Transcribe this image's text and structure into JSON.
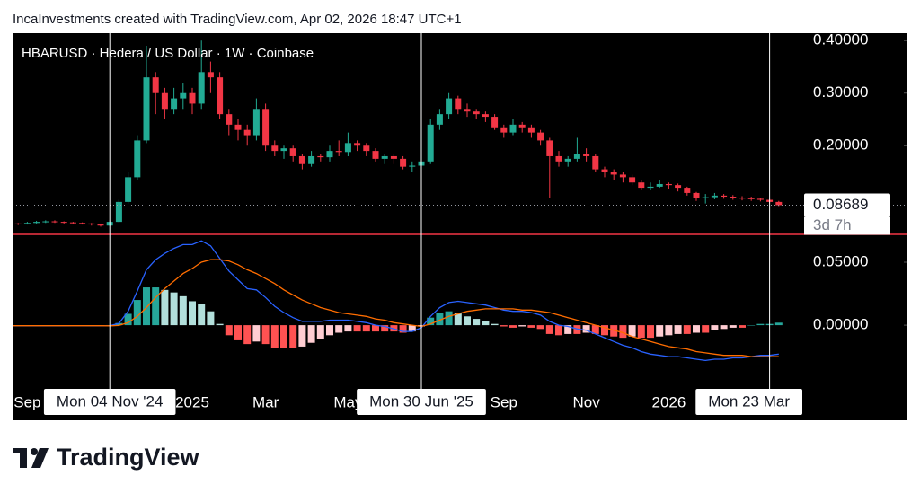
{
  "header": "IncaInvestments created with TradingView.com, Apr 02, 2026 18:47 UTC+1",
  "logo": "TradingView",
  "chart_data": [
    {
      "type": "candlestick",
      "title": "HBARUSD · Hedera / US Dollar · 1W · Coinbase",
      "countdown": "3d 7h",
      "up_color": "#22ab94",
      "down_color": "#f23645",
      "ylim": [
        0.033,
        0.414
      ],
      "yticks": [
        {
          "value": 0.4,
          "label": "0.40000"
        },
        {
          "value": 0.3,
          "label": "0.30000"
        },
        {
          "value": 0.2,
          "label": "0.20000"
        }
      ],
      "open": [
        0.05,
        0.052,
        0.051,
        0.053,
        0.055,
        0.056,
        0.055,
        0.054,
        0.053,
        0.052,
        0.05,
        0.048,
        0.055,
        0.093,
        0.14,
        0.21,
        0.33,
        0.3,
        0.27,
        0.29,
        0.3,
        0.28,
        0.34,
        0.33,
        0.26,
        0.24,
        0.23,
        0.22,
        0.27,
        0.2,
        0.19,
        0.195,
        0.18,
        0.165,
        0.18,
        0.178,
        0.19,
        0.188,
        0.205,
        0.2,
        0.19,
        0.175,
        0.18,
        0.175,
        0.16,
        0.162,
        0.17,
        0.24,
        0.26,
        0.29,
        0.27,
        0.265,
        0.26,
        0.255,
        0.235,
        0.225,
        0.24,
        0.235,
        0.225,
        0.21,
        0.18,
        0.17,
        0.175,
        0.185,
        0.18,
        0.155,
        0.15,
        0.145,
        0.14,
        0.13,
        0.12,
        0.122,
        0.127,
        0.125,
        0.12,
        0.11,
        0.1,
        0.102,
        0.105,
        0.103,
        0.101,
        0.1,
        0.099,
        0.097,
        0.093
      ],
      "high": [
        0.054,
        0.053,
        0.055,
        0.057,
        0.058,
        0.058,
        0.056,
        0.055,
        0.054,
        0.053,
        0.051,
        0.058,
        0.097,
        0.15,
        0.22,
        0.39,
        0.34,
        0.31,
        0.31,
        0.32,
        0.31,
        0.4,
        0.36,
        0.34,
        0.27,
        0.25,
        0.24,
        0.29,
        0.28,
        0.21,
        0.2,
        0.2,
        0.185,
        0.19,
        0.185,
        0.2,
        0.21,
        0.225,
        0.21,
        0.205,
        0.195,
        0.185,
        0.185,
        0.18,
        0.17,
        0.18,
        0.25,
        0.27,
        0.3,
        0.295,
        0.28,
        0.27,
        0.265,
        0.26,
        0.24,
        0.25,
        0.245,
        0.24,
        0.23,
        0.215,
        0.19,
        0.18,
        0.215,
        0.195,
        0.185,
        0.16,
        0.155,
        0.15,
        0.145,
        0.135,
        0.13,
        0.135,
        0.13,
        0.128,
        0.122,
        0.112,
        0.108,
        0.11,
        0.108,
        0.106,
        0.104,
        0.103,
        0.101,
        0.099,
        0.095
      ],
      "low": [
        0.049,
        0.049,
        0.05,
        0.052,
        0.053,
        0.053,
        0.052,
        0.051,
        0.05,
        0.048,
        0.046,
        0.047,
        0.054,
        0.09,
        0.135,
        0.205,
        0.26,
        0.25,
        0.26,
        0.27,
        0.26,
        0.27,
        0.3,
        0.25,
        0.22,
        0.21,
        0.2,
        0.21,
        0.19,
        0.18,
        0.175,
        0.17,
        0.155,
        0.16,
        0.17,
        0.17,
        0.18,
        0.18,
        0.19,
        0.18,
        0.17,
        0.165,
        0.165,
        0.155,
        0.15,
        0.155,
        0.165,
        0.23,
        0.25,
        0.26,
        0.255,
        0.25,
        0.245,
        0.23,
        0.215,
        0.22,
        0.225,
        0.215,
        0.2,
        0.1,
        0.16,
        0.16,
        0.17,
        0.17,
        0.15,
        0.14,
        0.135,
        0.13,
        0.125,
        0.115,
        0.115,
        0.12,
        0.118,
        0.113,
        0.105,
        0.095,
        0.09,
        0.098,
        0.099,
        0.097,
        0.096,
        0.095,
        0.094,
        0.09,
        0.085
      ],
      "close": [
        0.052,
        0.051,
        0.053,
        0.055,
        0.056,
        0.055,
        0.054,
        0.053,
        0.052,
        0.05,
        0.048,
        0.055,
        0.093,
        0.14,
        0.21,
        0.33,
        0.3,
        0.27,
        0.29,
        0.3,
        0.28,
        0.34,
        0.33,
        0.26,
        0.24,
        0.23,
        0.22,
        0.27,
        0.2,
        0.19,
        0.195,
        0.18,
        0.165,
        0.18,
        0.178,
        0.19,
        0.188,
        0.205,
        0.2,
        0.19,
        0.175,
        0.18,
        0.175,
        0.16,
        0.162,
        0.17,
        0.24,
        0.26,
        0.29,
        0.27,
        0.265,
        0.26,
        0.255,
        0.235,
        0.225,
        0.24,
        0.235,
        0.225,
        0.21,
        0.18,
        0.17,
        0.175,
        0.185,
        0.18,
        0.155,
        0.15,
        0.145,
        0.14,
        0.13,
        0.12,
        0.122,
        0.127,
        0.125,
        0.12,
        0.11,
        0.1,
        0.102,
        0.105,
        0.103,
        0.101,
        0.1,
        0.099,
        0.097,
        0.093,
        0.08689
      ]
    },
    {
      "type": "macd",
      "ylim": [
        -0.052,
        0.0714
      ],
      "yticks": [
        {
          "value": 0.05,
          "label": "0.05000"
        },
        {
          "value": 0,
          "label": "0.00000"
        }
      ],
      "series": [
        {
          "color": "#2962ff",
          "values": [
            -0.0005,
            -0.0006,
            -0.0006,
            -0.0006,
            -0.0005,
            -0.0005,
            -0.0005,
            -0.0004,
            -0.0004,
            -0.0005,
            -0.0006,
            -0.0004,
            0.0015,
            0.011,
            0.027,
            0.044,
            0.052,
            0.057,
            0.061,
            0.064,
            0.064,
            0.067,
            0.063,
            0.053,
            0.043,
            0.036,
            0.029,
            0.028,
            0.022,
            0.015,
            0.01,
            0.006,
            0.003,
            0.003,
            0.003,
            0.004,
            0.004,
            0.004,
            0.003,
            0.002,
            0,
            -0.001,
            -0.003,
            -0.005,
            -0.005,
            -0.002,
            0.007,
            0.014,
            0.018,
            0.019,
            0.018,
            0.017,
            0.016,
            0.014,
            0.012,
            0.011,
            0.011,
            0.01,
            0.008,
            0.003,
            0,
            -0.001,
            -0.003,
            -0.004,
            -0.007,
            -0.01,
            -0.013,
            -0.016,
            -0.018,
            -0.021,
            -0.023,
            -0.024,
            -0.025,
            -0.025,
            -0.026,
            -0.027,
            -0.028,
            -0.027,
            -0.027,
            -0.026,
            -0.026,
            -0.025,
            -0.024,
            -0.024,
            -0.023
          ]
        },
        {
          "color": "#ff6d00",
          "values": [
            -0.0004,
            -0.0004,
            -0.0004,
            -0.0004,
            -0.0004,
            -0.0004,
            -0.0004,
            -0.0004,
            -0.0004,
            -0.0004,
            -0.0004,
            -0.0005,
            -0.0002,
            0.002,
            0.007,
            0.014,
            0.022,
            0.029,
            0.035,
            0.041,
            0.045,
            0.05,
            0.052,
            0.052,
            0.051,
            0.048,
            0.044,
            0.041,
            0.037,
            0.033,
            0.028,
            0.024,
            0.02,
            0.017,
            0.014,
            0.012,
            0.01,
            0.009,
            0.008,
            0.007,
            0.005,
            0.004,
            0.002,
            0.001,
            0,
            -0.001,
            0.001,
            0.004,
            0.007,
            0.009,
            0.011,
            0.012,
            0.013,
            0.013,
            0.013,
            0.013,
            0.012,
            0.012,
            0.011,
            0.01,
            0.008,
            0.006,
            0.004,
            0.002,
            0,
            -0.002,
            -0.004,
            -0.006,
            -0.009,
            -0.011,
            -0.013,
            -0.015,
            -0.017,
            -0.018,
            -0.019,
            -0.021,
            -0.022,
            -0.023,
            -0.024,
            -0.024,
            -0.024,
            -0.025,
            -0.025,
            -0.025,
            -0.025
          ]
        }
      ],
      "histogram": {
        "colors": {
          "grow_above": "#26a69a",
          "fall_above": "#b2dfdb",
          "grow_below": "#ffcdd2",
          "fall_below": "#ff5252"
        },
        "values": [
          -0.0001,
          -0.0002,
          -0.0002,
          -0.0002,
          -0.0001,
          -0.0001,
          -0.0001,
          0,
          0,
          -0.0001,
          -0.0002,
          0.0001,
          0.0017,
          0.009,
          0.02,
          0.03,
          0.03,
          0.028,
          0.026,
          0.023,
          0.019,
          0.017,
          0.011,
          0.001,
          -0.008,
          -0.012,
          -0.015,
          -0.013,
          -0.015,
          -0.018,
          -0.018,
          -0.018,
          -0.017,
          -0.014,
          -0.011,
          -0.008,
          -0.006,
          -0.005,
          -0.005,
          -0.005,
          -0.005,
          -0.005,
          -0.005,
          -0.006,
          -0.005,
          -0.001,
          0.006,
          0.01,
          0.011,
          0.01,
          0.007,
          0.005,
          0.003,
          0.001,
          -0.001,
          -0.002,
          -0.001,
          -0.002,
          -0.003,
          -0.007,
          -0.008,
          -0.007,
          -0.007,
          -0.006,
          -0.007,
          -0.008,
          -0.009,
          -0.01,
          -0.009,
          -0.01,
          -0.01,
          -0.009,
          -0.008,
          -0.007,
          -0.007,
          -0.006,
          -0.006,
          -0.004,
          -0.003,
          -0.002,
          -0.002,
          0,
          0.001,
          0.001,
          0.002
        ]
      },
      "xticks": [
        {
          "value": 2,
          "label": "Sep"
        },
        {
          "value": 20,
          "label": "2025"
        },
        {
          "value": 28,
          "label": "Mar"
        },
        {
          "value": 37,
          "label": "May"
        },
        {
          "value": 54,
          "label": "Sep"
        },
        {
          "value": 63,
          "label": "Nov"
        },
        {
          "value": 72,
          "label": "2026"
        }
      ],
      "crosshairs": [
        {
          "value": 11,
          "label": "Mon 04 Nov '24"
        },
        {
          "value": 45,
          "label": "Mon 30 Jun '25"
        },
        {
          "value": 83,
          "label": "Mon 23 Mar"
        }
      ]
    }
  ]
}
